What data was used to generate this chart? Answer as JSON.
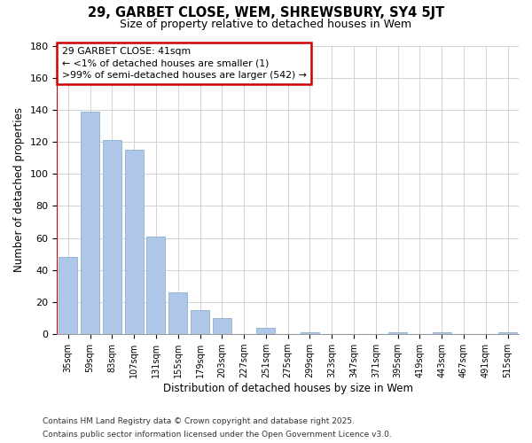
{
  "title": "29, GARBET CLOSE, WEM, SHREWSBURY, SY4 5JT",
  "subtitle": "Size of property relative to detached houses in Wem",
  "xlabel": "Distribution of detached houses by size in Wem",
  "ylabel": "Number of detached properties",
  "bar_color": "#aec6e8",
  "bar_edge_color": "#8ab0d0",
  "annotation_box_edge": "#cc0000",
  "annotation_line1": "29 GARBET CLOSE: 41sqm",
  "annotation_line2": "← <1% of detached houses are smaller (1)",
  "annotation_line3": ">99% of semi-detached houses are larger (542) →",
  "property_line_color": "#cc0000",
  "categories": [
    "35sqm",
    "59sqm",
    "83sqm",
    "107sqm",
    "131sqm",
    "155sqm",
    "179sqm",
    "203sqm",
    "227sqm",
    "251sqm",
    "275sqm",
    "299sqm",
    "323sqm",
    "347sqm",
    "371sqm",
    "395sqm",
    "419sqm",
    "443sqm",
    "467sqm",
    "491sqm",
    "515sqm"
  ],
  "values": [
    48,
    139,
    121,
    115,
    61,
    26,
    15,
    10,
    0,
    4,
    0,
    1,
    0,
    0,
    0,
    1,
    0,
    1,
    0,
    0,
    1
  ],
  "ylim": [
    0,
    180
  ],
  "yticks": [
    0,
    20,
    40,
    60,
    80,
    100,
    120,
    140,
    160,
    180
  ],
  "background_color": "#ffffff",
  "grid_color": "#cccccc",
  "footer_line1": "Contains HM Land Registry data © Crown copyright and database right 2025.",
  "footer_line2": "Contains public sector information licensed under the Open Government Licence v3.0."
}
